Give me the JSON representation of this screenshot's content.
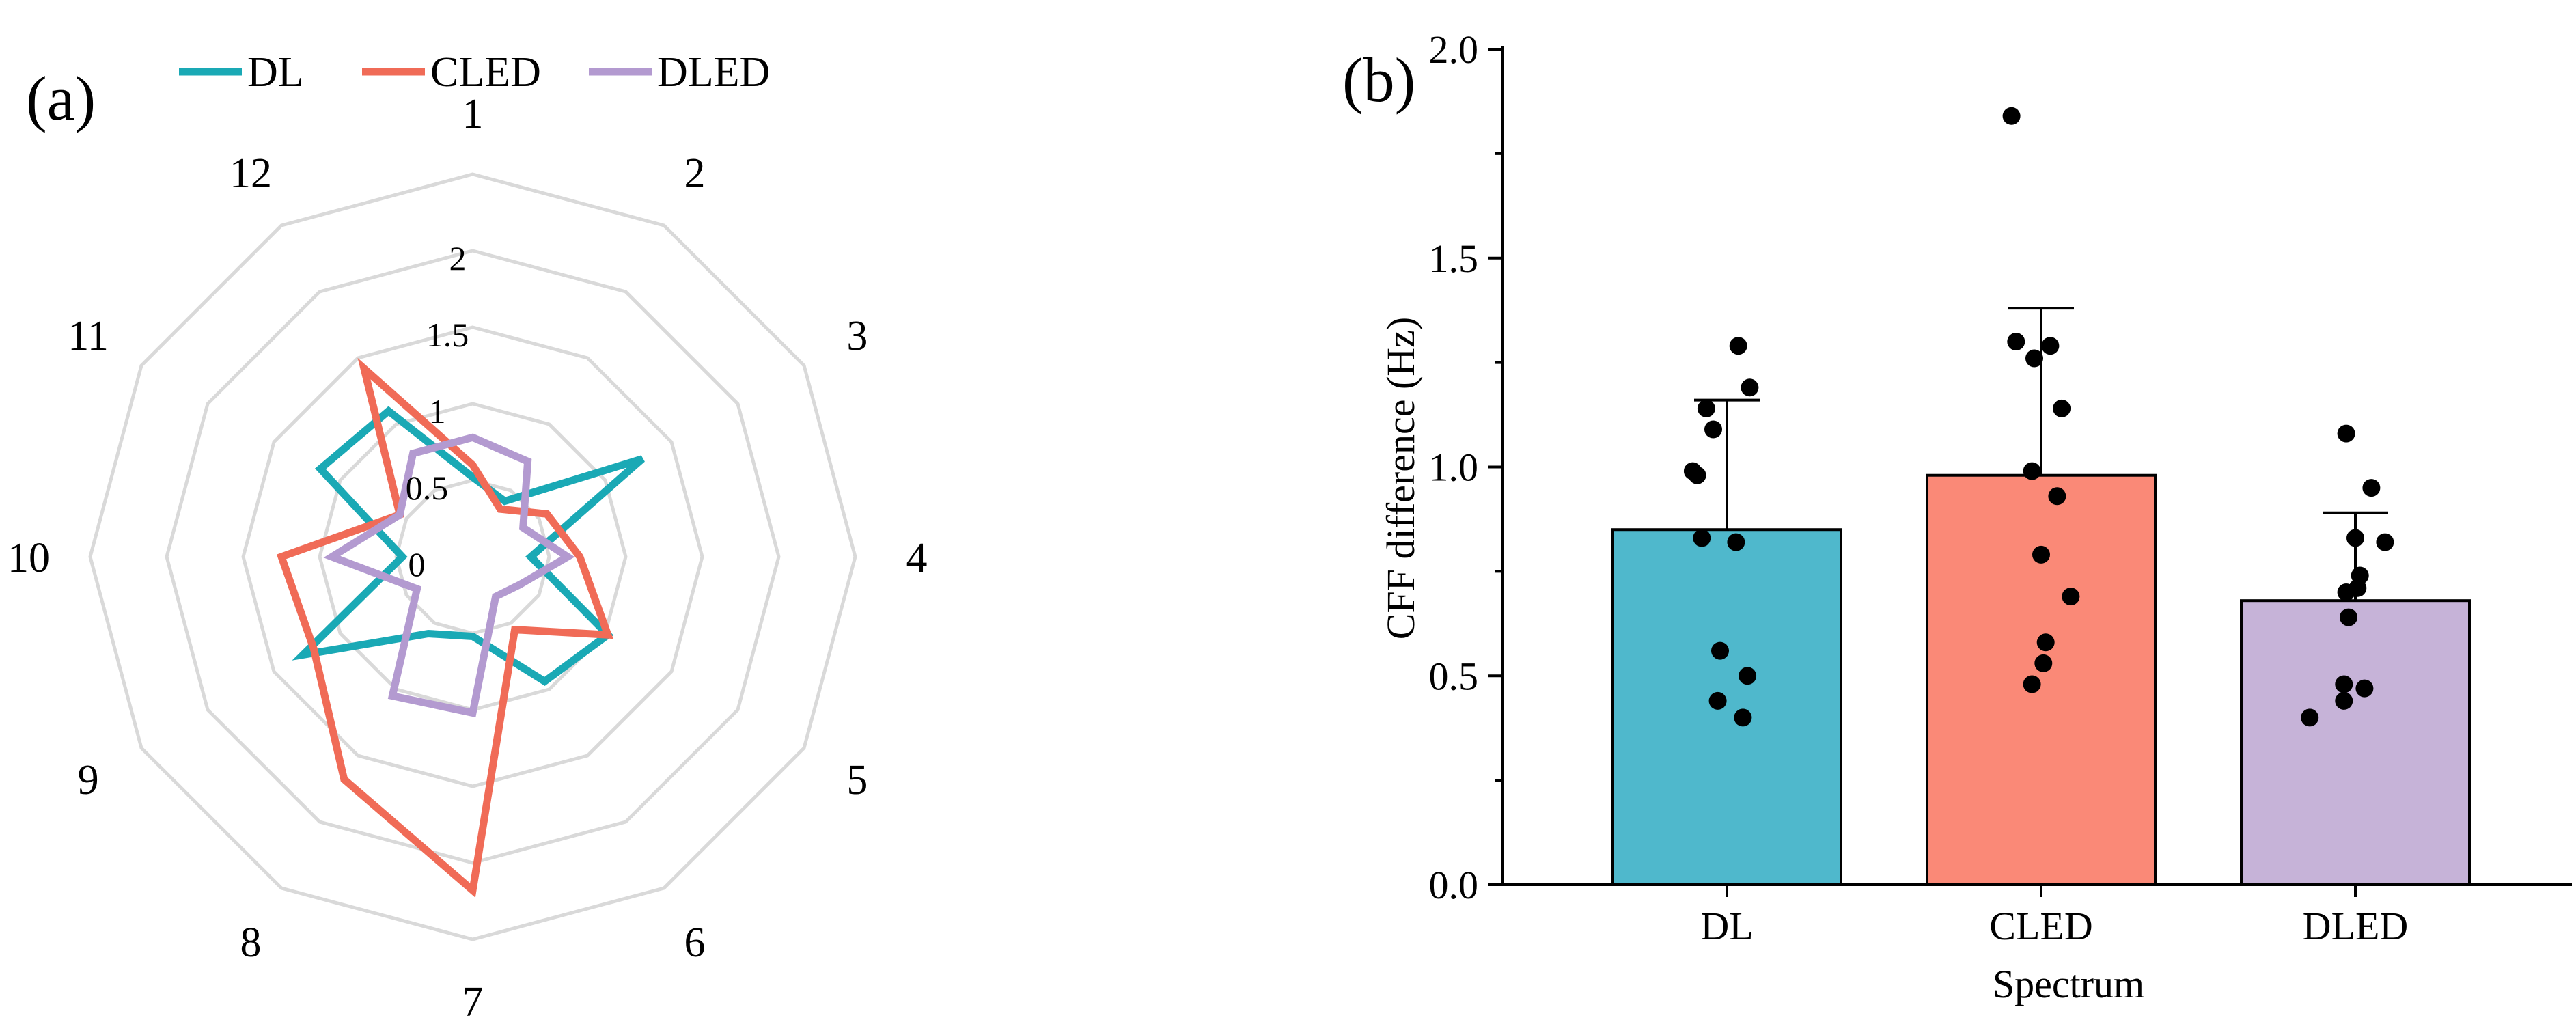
{
  "chart_data": [
    {
      "panel_label": "(a)",
      "type": "radar",
      "axes": [
        "1",
        "2",
        "3",
        "4",
        "5",
        "6",
        "7",
        "8",
        "9",
        "10",
        "11",
        "12"
      ],
      "rings": [
        0,
        0.5,
        1,
        1.5,
        2
      ],
      "ring_labels": [
        "0",
        "0.5",
        "1",
        "1.5",
        "2"
      ],
      "rmax": 2.5,
      "legend": [
        "DL",
        "CLED",
        "DLED"
      ],
      "series": [
        {
          "name": "DL",
          "color": "#1aa9b5",
          "values": [
            0.52,
            0.42,
            1.28,
            0.38,
            1.02,
            0.94,
            0.52,
            0.58,
            1.28,
            0.46,
            1.15,
            1.1
          ]
        },
        {
          "name": "CLED",
          "color": "#f06b57",
          "values": [
            0.6,
            0.36,
            0.56,
            0.7,
            1.02,
            0.55,
            2.18,
            1.68,
            1.2,
            1.25,
            0.55,
            1.42
          ]
        },
        {
          "name": "DLED",
          "color": "#b39ad0",
          "values": [
            0.78,
            0.72,
            0.38,
            0.62,
            0.36,
            0.3,
            1.02,
            1.05,
            0.42,
            0.92,
            0.55,
            0.78
          ]
        }
      ]
    },
    {
      "panel_label": "(b)",
      "type": "bar",
      "categories": [
        "DL",
        "CLED",
        "DLED"
      ],
      "values": [
        0.85,
        0.98,
        0.68
      ],
      "errors": [
        0.31,
        0.4,
        0.21
      ],
      "colors": [
        "#4fb8cc",
        "#fa8977",
        "#c6b3d8"
      ],
      "ylim": [
        0,
        2
      ],
      "yticks": [
        "0.0",
        "0.5",
        "1.0",
        "1.5",
        "2.0"
      ],
      "xlabel": "Spectrum",
      "ylabel": "CFF difference (Hz)",
      "points": [
        [
          1.29,
          1.19,
          1.14,
          1.09,
          0.99,
          0.98,
          0.83,
          0.82,
          0.56,
          0.5,
          0.44,
          0.4
        ],
        [
          1.84,
          1.3,
          1.29,
          1.26,
          1.14,
          0.99,
          0.93,
          0.79,
          0.69,
          0.58,
          0.53,
          0.48
        ],
        [
          1.08,
          0.95,
          0.83,
          0.82,
          0.74,
          0.71,
          0.7,
          0.64,
          0.48,
          0.47,
          0.44,
          0.4
        ]
      ]
    }
  ]
}
